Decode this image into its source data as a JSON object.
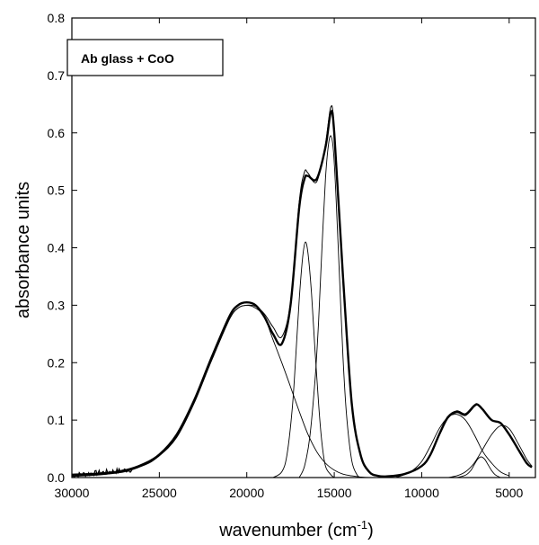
{
  "chart_data": {
    "type": "line",
    "title": "",
    "legend": "Ab glass + CoO",
    "legend_placement": "top-left",
    "xlabel": "wavenumber (cm",
    "xlabel_sup": "-1",
    "xlabel_close": ")",
    "ylabel": "absorbance units",
    "xlim": [
      30000,
      3500
    ],
    "ylim": [
      0.0,
      0.8
    ],
    "x_ticks": [
      30000,
      25000,
      20000,
      15000,
      10000,
      5000
    ],
    "x_tick_labels": [
      "30000",
      "25000",
      "20000",
      "15000",
      "10000",
      "5000"
    ],
    "y_ticks": [
      0.0,
      0.1,
      0.2,
      0.3,
      0.4,
      0.5,
      0.6,
      0.7,
      0.8
    ],
    "y_tick_labels": [
      "0.0",
      "0.1",
      "0.2",
      "0.3",
      "0.4",
      "0.5",
      "0.6",
      "0.7",
      "0.8"
    ],
    "grid": false,
    "series": [
      {
        "role": "measured",
        "x": [
          30000,
          29000,
          28000,
          27000,
          26000,
          25000,
          24000,
          23000,
          22000,
          21000,
          20500,
          20000,
          19500,
          19000,
          18500,
          18000,
          17500,
          17000,
          16700,
          16500,
          16000,
          15500,
          15200,
          15000,
          14500,
          14000,
          13500,
          13000,
          12500,
          12000,
          11000,
          10000,
          9500,
          9000,
          8500,
          8000,
          7500,
          7000,
          6800,
          6500,
          6000,
          5500,
          5000,
          4500,
          4000,
          3700
        ],
        "y": [
          0.005,
          0.006,
          0.008,
          0.012,
          0.022,
          0.04,
          0.075,
          0.135,
          0.21,
          0.28,
          0.3,
          0.305,
          0.3,
          0.28,
          0.25,
          0.233,
          0.3,
          0.47,
          0.52,
          0.525,
          0.52,
          0.575,
          0.635,
          0.6,
          0.35,
          0.13,
          0.04,
          0.01,
          0.003,
          0.002,
          0.006,
          0.02,
          0.04,
          0.075,
          0.105,
          0.115,
          0.11,
          0.125,
          0.127,
          0.118,
          0.1,
          0.095,
          0.075,
          0.05,
          0.025,
          0.018
        ]
      },
      {
        "role": "fit",
        "x": [
          30000,
          29000,
          28000,
          27000,
          26000,
          25000,
          24000,
          23000,
          22000,
          21000,
          20500,
          20000,
          19500,
          19000,
          18500,
          18000,
          17500,
          17000,
          16700,
          16500,
          16000,
          15500,
          15200,
          15000,
          14500,
          14000,
          13500,
          13000,
          12500,
          12000,
          11000,
          10000,
          9500,
          9000,
          8500,
          8000,
          7500,
          7000,
          6800,
          6500,
          6000,
          5500,
          5000,
          4500,
          4000,
          3700
        ],
        "y": [
          0.002,
          0.004,
          0.006,
          0.01,
          0.02,
          0.038,
          0.072,
          0.132,
          0.205,
          0.275,
          0.295,
          0.3,
          0.298,
          0.285,
          0.262,
          0.245,
          0.305,
          0.48,
          0.532,
          0.53,
          0.515,
          0.58,
          0.645,
          0.605,
          0.355,
          0.13,
          0.04,
          0.01,
          0.003,
          0.002,
          0.006,
          0.02,
          0.04,
          0.073,
          0.103,
          0.113,
          0.108,
          0.123,
          0.126,
          0.118,
          0.1,
          0.094,
          0.074,
          0.05,
          0.025,
          0.018
        ]
      },
      {
        "role": "component",
        "x": [
          30000,
          28000,
          26000,
          25000,
          24000,
          23000,
          22000,
          21000,
          20500,
          20000,
          19500,
          19000,
          18500,
          18000,
          17500,
          17000,
          16500,
          16000,
          15500,
          15000,
          14500,
          14000,
          13500,
          13000,
          12000
        ],
        "y": [
          0.002,
          0.006,
          0.02,
          0.038,
          0.07,
          0.13,
          0.205,
          0.275,
          0.295,
          0.3,
          0.295,
          0.28,
          0.24,
          0.2,
          0.158,
          0.115,
          0.075,
          0.045,
          0.025,
          0.013,
          0.006,
          0.003,
          0.001,
          0.0,
          0.0
        ]
      },
      {
        "role": "component",
        "x": [
          18500,
          18000,
          17700,
          17400,
          17200,
          17000,
          16800,
          16650,
          16500,
          16300,
          16100,
          15900,
          15700,
          15500,
          15200,
          15000
        ],
        "y": [
          0.0,
          0.01,
          0.04,
          0.12,
          0.21,
          0.31,
          0.385,
          0.41,
          0.39,
          0.32,
          0.22,
          0.13,
          0.06,
          0.02,
          0.005,
          0.0
        ]
      },
      {
        "role": "component",
        "x": [
          17000,
          16700,
          16400,
          16100,
          15900,
          15700,
          15500,
          15350,
          15200,
          15050,
          14900,
          14700,
          14500,
          14300,
          14000,
          13700,
          13500
        ],
        "y": [
          0.0,
          0.02,
          0.07,
          0.17,
          0.27,
          0.4,
          0.52,
          0.575,
          0.595,
          0.57,
          0.49,
          0.35,
          0.21,
          0.11,
          0.03,
          0.005,
          0.0
        ]
      },
      {
        "role": "component",
        "x": [
          11500,
          11000,
          10500,
          10000,
          9500,
          9000,
          8500,
          8000,
          7500,
          7000,
          6500,
          6000,
          5500,
          5000
        ],
        "y": [
          0.0,
          0.005,
          0.013,
          0.028,
          0.055,
          0.085,
          0.105,
          0.11,
          0.1,
          0.075,
          0.045,
          0.025,
          0.01,
          0.003
        ]
      },
      {
        "role": "component",
        "x": [
          8000,
          7500,
          7200,
          7000,
          6800,
          6600,
          6400,
          6200,
          6000,
          5800,
          5500
        ],
        "y": [
          0.0,
          0.004,
          0.012,
          0.022,
          0.032,
          0.036,
          0.032,
          0.022,
          0.012,
          0.005,
          0.0
        ]
      },
      {
        "role": "component",
        "x": [
          8500,
          8000,
          7500,
          7000,
          6500,
          6000,
          5500,
          5000,
          4500,
          4000,
          3700
        ],
        "y": [
          0.0,
          0.003,
          0.01,
          0.025,
          0.05,
          0.075,
          0.09,
          0.085,
          0.06,
          0.032,
          0.02
        ]
      }
    ]
  }
}
